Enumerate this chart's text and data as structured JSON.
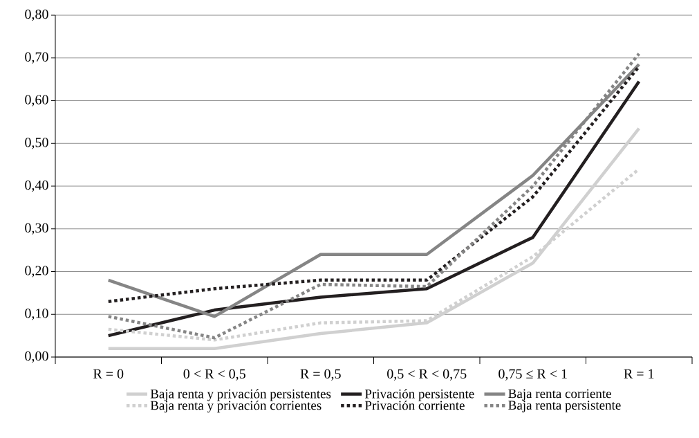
{
  "chart_data": {
    "type": "line",
    "categories": [
      "R = 0",
      "0 < R < 0,5",
      "R = 0,5",
      "0,5 < R < 0,75",
      "0,75 ≤ R < 1",
      "R = 1"
    ],
    "series": [
      {
        "name": "Baja renta y privación persistentes",
        "color": "#d0d0d0",
        "line_style": "solid",
        "values": [
          0.02,
          0.02,
          0.055,
          0.08,
          0.22,
          0.535
        ]
      },
      {
        "name": "Privación persistente",
        "color": "#231f20",
        "line_style": "solid",
        "values": [
          0.05,
          0.11,
          0.14,
          0.16,
          0.28,
          0.645
        ]
      },
      {
        "name": "Baja renta corriente",
        "color": "#858585",
        "line_style": "solid",
        "values": [
          0.18,
          0.095,
          0.24,
          0.24,
          0.425,
          0.685
        ]
      },
      {
        "name": "Baja renta y privación corrientes",
        "color": "#d0d0d0",
        "line_style": "dotted",
        "values": [
          0.065,
          0.04,
          0.08,
          0.085,
          0.235,
          0.44
        ]
      },
      {
        "name": "Privación corriente",
        "color": "#231f20",
        "line_style": "dotted",
        "values": [
          0.13,
          0.16,
          0.18,
          0.18,
          0.375,
          0.68
        ]
      },
      {
        "name": "Baja renta persistente",
        "color": "#858585",
        "line_style": "dotted",
        "values": [
          0.095,
          0.045,
          0.17,
          0.165,
          0.4,
          0.71
        ]
      }
    ],
    "ylim": [
      0,
      0.8
    ],
    "yticks": [
      {
        "value": 0,
        "label": "0,00"
      },
      {
        "value": 0.1,
        "label": "0,10"
      },
      {
        "value": 0.2,
        "label": "0,20"
      },
      {
        "value": 0.3,
        "label": "0,30"
      },
      {
        "value": 0.4,
        "label": "0,40"
      },
      {
        "value": 0.5,
        "label": "0,50"
      },
      {
        "value": 0.6,
        "label": "0,60"
      },
      {
        "value": 0.7,
        "label": "0,70"
      },
      {
        "value": 0.8,
        "label": "0,80"
      }
    ],
    "grid": "y",
    "legend": "bottom"
  }
}
